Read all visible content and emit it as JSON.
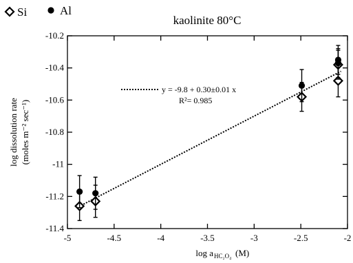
{
  "legend": {
    "si_label": "Si",
    "al_label": "Al"
  },
  "annotation": {
    "equation": "y = -9.8 + 0.30±0.01 x",
    "r2_label": "R²= 0.985"
  },
  "chart_data": {
    "type": "scatter",
    "title": "kaolinite 80°C",
    "xlabel": "log a",
    "xlabel_subscript": "HC₂O₄",
    "xlabel_unit": "(M)",
    "ylabel_line1": "log dissolution rate",
    "ylabel_line2": "(moles m⁻² sec⁻¹)",
    "xlim": [
      -5,
      -2
    ],
    "ylim": [
      -11.4,
      -10.2
    ],
    "xticks": [
      -5,
      -4.5,
      -4,
      -3.5,
      -3,
      -2.5,
      -2
    ],
    "xtick_labels": [
      "-5",
      "-4.5",
      "-4",
      "-3.5",
      "-3",
      "-2.5",
      "-2"
    ],
    "yticks": [
      -11.4,
      -11.2,
      -11,
      -10.8,
      -10.6,
      -10.4,
      -10.2
    ],
    "ytick_labels": [
      "-11.4",
      "-11.2",
      "-11",
      "-10.8",
      "-10.6",
      "-10.4",
      "-10.2"
    ],
    "series": [
      {
        "name": "Si",
        "marker": "open-diamond",
        "points": [
          {
            "x": -4.87,
            "y": -11.26,
            "err": 0.09
          },
          {
            "x": -4.7,
            "y": -11.23,
            "err": 0.1
          },
          {
            "x": -2.49,
            "y": -10.58,
            "err": 0.09
          },
          {
            "x": -2.1,
            "y": -10.48,
            "err": 0.1
          },
          {
            "x": -2.1,
            "y": -10.38,
            "err": 0.09
          }
        ]
      },
      {
        "name": "Al",
        "marker": "filled-circle",
        "points": [
          {
            "x": -4.87,
            "y": -11.17,
            "err": 0.1
          },
          {
            "x": -4.7,
            "y": -11.18,
            "err": 0.1
          },
          {
            "x": -2.49,
            "y": -10.51,
            "err": 0.1
          },
          {
            "x": -2.1,
            "y": -10.37,
            "err": 0.09
          },
          {
            "x": -2.1,
            "y": -10.35,
            "err": 0.09
          }
        ]
      }
    ],
    "fit": {
      "intercept": -9.8,
      "slope": 0.3,
      "x_range": [
        -4.88,
        -2.07
      ],
      "style": "dotted"
    },
    "grid": false,
    "legend_position": "top-left"
  }
}
